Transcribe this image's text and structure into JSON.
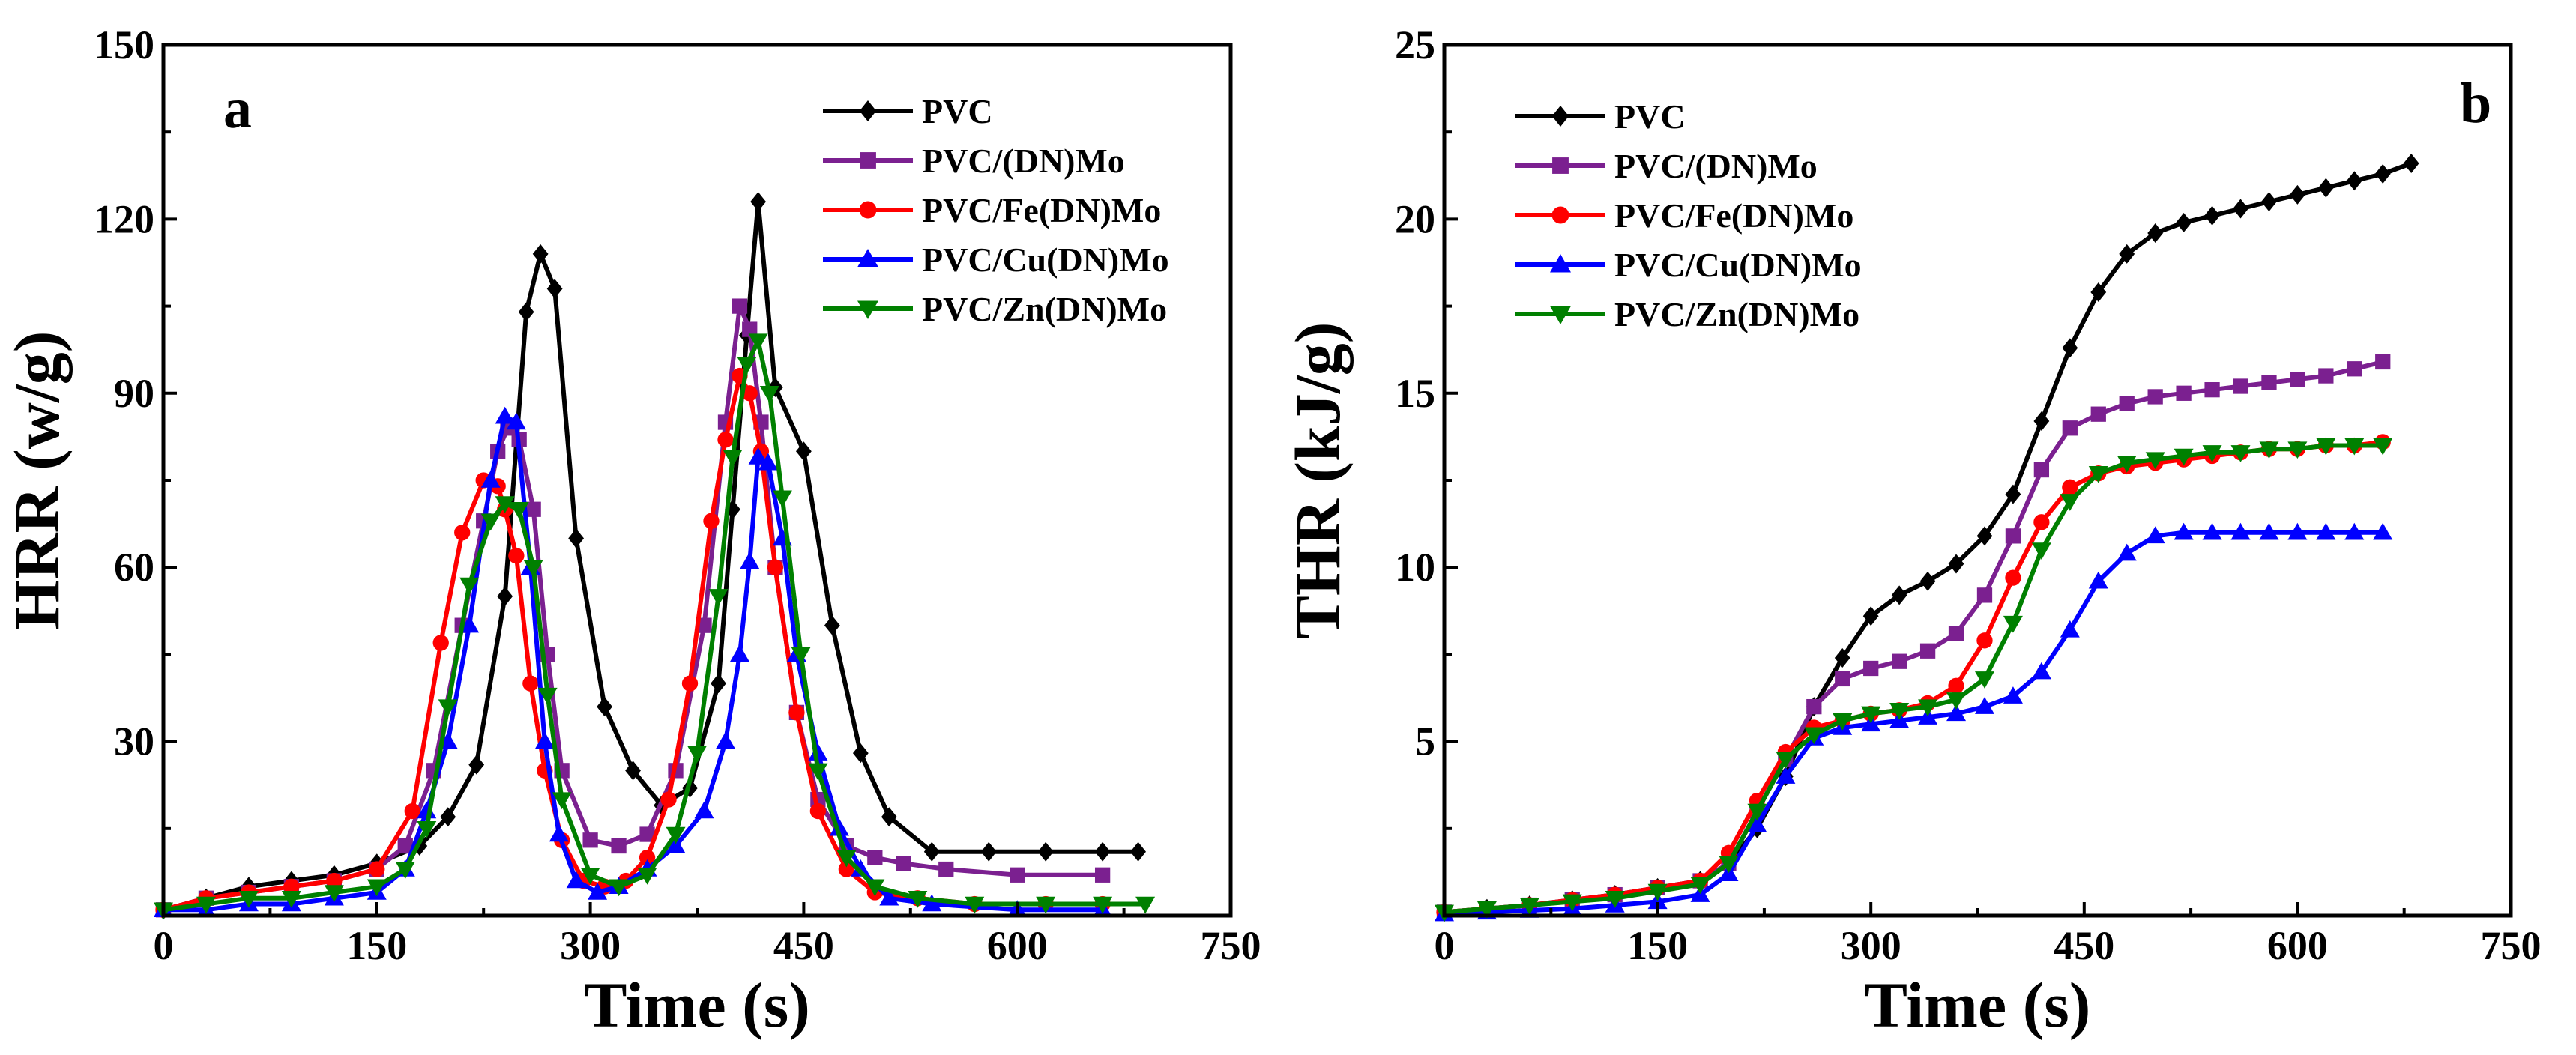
{
  "chart_data": [
    {
      "type": "line",
      "panel_label": "a",
      "xlabel": "Time (s)",
      "ylabel": "HRR (w/g)",
      "xlim": [
        0,
        750
      ],
      "ylim": [
        0,
        150
      ],
      "xticks": [
        "0",
        "150",
        "300",
        "450",
        "600",
        "750"
      ],
      "yticks": [
        "30",
        "60",
        "90",
        "120",
        "150"
      ],
      "grid": false,
      "legend_position": "top-right",
      "series": [
        {
          "name": "PVC",
          "color": "#000000",
          "marker": "diamond",
          "x": [
            0,
            30,
            60,
            90,
            120,
            150,
            180,
            200,
            220,
            240,
            255,
            265,
            275,
            290,
            310,
            330,
            350,
            370,
            390,
            400,
            410,
            418,
            430,
            450,
            470,
            490,
            510,
            540,
            580,
            620,
            660,
            685
          ],
          "y": [
            1,
            3,
            5,
            6,
            7,
            9,
            12,
            17,
            26,
            55,
            104,
            114,
            108,
            65,
            36,
            25,
            19,
            22,
            40,
            70,
            100,
            123,
            91,
            80,
            50,
            28,
            17,
            11,
            11,
            11,
            11,
            11
          ]
        },
        {
          "name": "PVC/(DN)Mo",
          "color": "#7B2090",
          "marker": "square",
          "x": [
            0,
            30,
            60,
            90,
            120,
            150,
            170,
            190,
            210,
            225,
            235,
            242,
            250,
            260,
            270,
            280,
            300,
            320,
            340,
            360,
            380,
            395,
            405,
            412,
            420,
            430,
            445,
            460,
            480,
            500,
            520,
            550,
            600,
            660
          ],
          "y": [
            1,
            3,
            4,
            5,
            6,
            8,
            12,
            25,
            50,
            68,
            80,
            84,
            82,
            70,
            45,
            25,
            13,
            12,
            14,
            25,
            50,
            85,
            105,
            101,
            85,
            60,
            35,
            20,
            12,
            10,
            9,
            8,
            7,
            7
          ]
        },
        {
          "name": "PVC/Fe(DN)Mo",
          "color": "#FF0000",
          "marker": "circle",
          "x": [
            0,
            30,
            60,
            90,
            120,
            150,
            175,
            195,
            210,
            225,
            235,
            240,
            248,
            258,
            268,
            280,
            295,
            310,
            325,
            340,
            355,
            370,
            385,
            395,
            405,
            412,
            420,
            430,
            445,
            460,
            480,
            500,
            530,
            570,
            620,
            660
          ],
          "y": [
            1,
            3,
            4,
            5,
            6,
            8,
            18,
            47,
            66,
            75,
            74,
            70,
            62,
            40,
            25,
            13,
            6,
            5,
            6,
            10,
            20,
            40,
            68,
            82,
            93,
            90,
            80,
            60,
            35,
            18,
            8,
            4,
            3,
            2,
            2,
            2
          ]
        },
        {
          "name": "PVC/Cu(DN)Mo",
          "color": "#0000FF",
          "marker": "triangle-up",
          "x": [
            0,
            30,
            60,
            90,
            120,
            150,
            170,
            185,
            200,
            215,
            230,
            240,
            248,
            258,
            268,
            278,
            290,
            305,
            320,
            340,
            360,
            380,
            395,
            405,
            412,
            418,
            425,
            435,
            445,
            460,
            475,
            490,
            510,
            540,
            600,
            660
          ],
          "y": [
            1,
            1,
            2,
            2,
            3,
            4,
            8,
            18,
            30,
            50,
            75,
            86,
            85,
            60,
            30,
            14,
            6,
            4,
            5,
            8,
            12,
            18,
            30,
            45,
            61,
            79,
            78,
            65,
            45,
            28,
            15,
            8,
            3,
            2,
            1,
            1
          ]
        },
        {
          "name": "PVC/Zn(DN)Mo",
          "color": "#008000",
          "marker": "triangle-down",
          "x": [
            0,
            30,
            60,
            90,
            120,
            150,
            170,
            185,
            200,
            215,
            230,
            240,
            250,
            260,
            270,
            280,
            300,
            320,
            340,
            360,
            375,
            390,
            400,
            410,
            418,
            426,
            435,
            448,
            460,
            480,
            500,
            530,
            570,
            620,
            660,
            690
          ],
          "y": [
            1,
            2,
            3,
            3,
            4,
            5,
            8,
            15,
            36,
            57,
            68,
            71,
            70,
            60,
            38,
            20,
            7,
            5,
            7,
            14,
            28,
            55,
            79,
            95,
            99,
            90,
            72,
            45,
            25,
            10,
            5,
            3,
            2,
            2,
            2,
            2
          ]
        }
      ]
    },
    {
      "type": "line",
      "panel_label": "b",
      "xlabel": "Time (s)",
      "ylabel": "THR (kJ/g)",
      "xlim": [
        0,
        750
      ],
      "ylim": [
        0,
        25
      ],
      "xticks": [
        "0",
        "150",
        "300",
        "450",
        "600",
        "750"
      ],
      "yticks": [
        "5",
        "10",
        "15",
        "20",
        "25"
      ],
      "grid": false,
      "legend_position": "top-left",
      "series": [
        {
          "name": "PVC",
          "color": "#000000",
          "marker": "diamond",
          "x": [
            0,
            30,
            60,
            90,
            120,
            150,
            180,
            200,
            220,
            240,
            260,
            280,
            300,
            320,
            340,
            360,
            380,
            400,
            420,
            440,
            460,
            480,
            500,
            520,
            540,
            560,
            580,
            600,
            620,
            640,
            660,
            680
          ],
          "y": [
            0.1,
            0.2,
            0.3,
            0.45,
            0.6,
            0.8,
            1.0,
            1.5,
            2.5,
            4.0,
            6.0,
            7.4,
            8.6,
            9.2,
            9.6,
            10.1,
            10.9,
            12.1,
            14.2,
            16.3,
            17.9,
            19.0,
            19.6,
            19.9,
            20.1,
            20.3,
            20.5,
            20.7,
            20.9,
            21.1,
            21.3,
            21.6
          ]
        },
        {
          "name": "PVC/(DN)Mo",
          "color": "#7B2090",
          "marker": "square",
          "x": [
            0,
            30,
            60,
            90,
            120,
            150,
            180,
            200,
            220,
            240,
            260,
            280,
            300,
            320,
            340,
            360,
            380,
            400,
            420,
            440,
            460,
            480,
            500,
            520,
            540,
            560,
            580,
            600,
            620,
            640,
            660
          ],
          "y": [
            0.1,
            0.2,
            0.3,
            0.45,
            0.6,
            0.8,
            1.0,
            1.5,
            3.0,
            4.5,
            6.0,
            6.8,
            7.1,
            7.3,
            7.6,
            8.1,
            9.2,
            10.9,
            12.8,
            14.0,
            14.4,
            14.7,
            14.9,
            15.0,
            15.1,
            15.2,
            15.3,
            15.4,
            15.5,
            15.7,
            15.9
          ]
        },
        {
          "name": "PVC/Fe(DN)Mo",
          "color": "#FF0000",
          "marker": "circle",
          "x": [
            0,
            30,
            60,
            90,
            120,
            150,
            180,
            200,
            220,
            240,
            260,
            280,
            300,
            320,
            340,
            360,
            380,
            400,
            420,
            440,
            460,
            480,
            500,
            520,
            540,
            560,
            580,
            600,
            620,
            640,
            660
          ],
          "y": [
            0.1,
            0.2,
            0.3,
            0.45,
            0.6,
            0.8,
            1.0,
            1.8,
            3.3,
            4.7,
            5.4,
            5.6,
            5.8,
            5.9,
            6.1,
            6.6,
            7.9,
            9.7,
            11.3,
            12.3,
            12.7,
            12.9,
            13.0,
            13.1,
            13.2,
            13.3,
            13.4,
            13.4,
            13.5,
            13.5,
            13.6
          ]
        },
        {
          "name": "PVC/Cu(DN)Mo",
          "color": "#0000FF",
          "marker": "triangle-up",
          "x": [
            0,
            30,
            60,
            90,
            120,
            150,
            180,
            200,
            220,
            240,
            260,
            280,
            300,
            320,
            340,
            360,
            380,
            400,
            420,
            440,
            460,
            480,
            500,
            520,
            540,
            560,
            580,
            600,
            620,
            640,
            660
          ],
          "y": [
            0.05,
            0.1,
            0.15,
            0.2,
            0.3,
            0.4,
            0.6,
            1.2,
            2.6,
            4.0,
            5.1,
            5.4,
            5.5,
            5.6,
            5.7,
            5.8,
            6.0,
            6.3,
            7.0,
            8.2,
            9.6,
            10.4,
            10.9,
            11.0,
            11.0,
            11.0,
            11.0,
            11.0,
            11.0,
            11.0,
            11.0
          ]
        },
        {
          "name": "PVC/Zn(DN)Mo",
          "color": "#008000",
          "marker": "triangle-down",
          "x": [
            0,
            30,
            60,
            90,
            120,
            150,
            180,
            200,
            220,
            240,
            260,
            280,
            300,
            320,
            340,
            360,
            380,
            400,
            420,
            440,
            460,
            480,
            500,
            520,
            540,
            560,
            580,
            600,
            620,
            640,
            660
          ],
          "y": [
            0.1,
            0.2,
            0.3,
            0.4,
            0.5,
            0.7,
            0.9,
            1.5,
            3.0,
            4.5,
            5.2,
            5.6,
            5.8,
            5.9,
            6.0,
            6.2,
            6.8,
            8.4,
            10.5,
            11.9,
            12.7,
            13.0,
            13.1,
            13.2,
            13.3,
            13.3,
            13.4,
            13.4,
            13.5,
            13.5,
            13.5
          ]
        }
      ]
    }
  ]
}
